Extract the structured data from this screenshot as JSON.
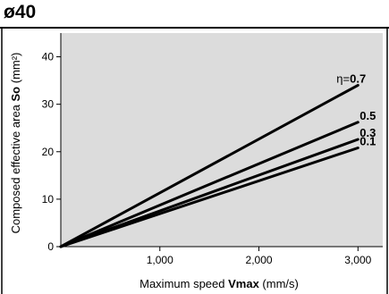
{
  "chart_data": {
    "type": "line",
    "title": "ø40",
    "xlabel": {
      "pre": "Maximum speed ",
      "bold": "Vmax",
      "post": " (mm/s)"
    },
    "ylabel": {
      "pre": "Composed effective area ",
      "bold": "So",
      "post": " (mm²)"
    },
    "xlim": [
      0,
      3250
    ],
    "ylim": [
      0,
      45
    ],
    "x_ticks": [
      1000,
      2000,
      3000
    ],
    "x_tick_labels": [
      "1,000",
      "2,000",
      "3,000"
    ],
    "y_ticks": [
      0,
      10,
      20,
      30,
      40
    ],
    "y_tick_labels": [
      "0",
      "10",
      "20",
      "30",
      "40"
    ],
    "grid": false,
    "background": "#dcdcdc",
    "line_color": "#000000",
    "series": [
      {
        "name": "0.7",
        "label_prefix": "η=",
        "x": [
          0,
          3000
        ],
        "y": [
          0,
          34
        ]
      },
      {
        "name": "0.5",
        "label_prefix": "",
        "x": [
          0,
          3000
        ],
        "y": [
          0,
          26.2
        ]
      },
      {
        "name": "0.3",
        "label_prefix": "",
        "x": [
          0,
          3000
        ],
        "y": [
          0,
          22.6
        ]
      },
      {
        "name": "0.1",
        "label_prefix": "",
        "x": [
          0,
          3000
        ],
        "y": [
          0,
          20.8
        ]
      }
    ]
  }
}
